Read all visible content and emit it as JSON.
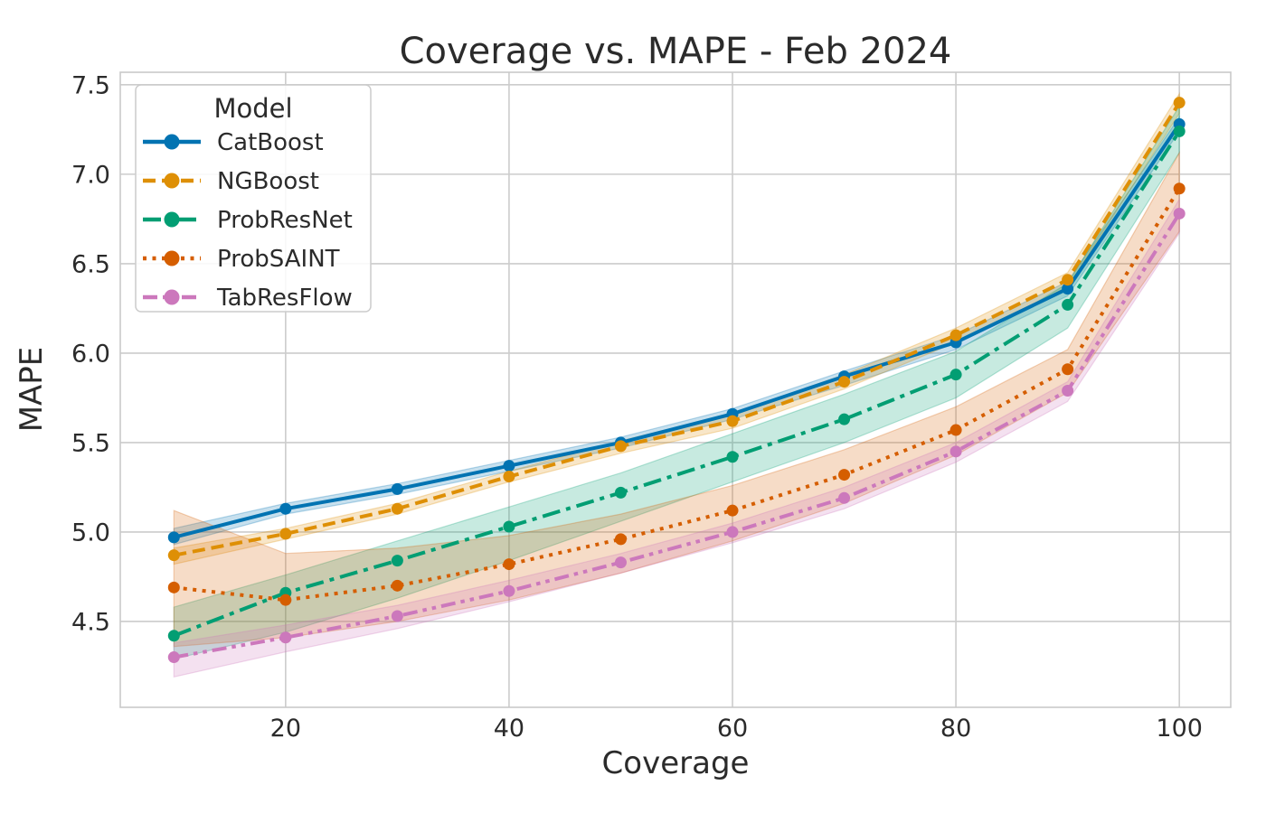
{
  "chart_data": {
    "type": "line",
    "title": "Coverage vs. MAPE - Feb 2024",
    "xlabel": "Coverage",
    "ylabel": "MAPE",
    "legend_title": "Model",
    "legend_position": "upper left",
    "grid": true,
    "x": [
      10,
      20,
      30,
      40,
      50,
      60,
      70,
      80,
      90,
      100
    ],
    "xticks": [
      20,
      40,
      60,
      80,
      100
    ],
    "yticks": [
      4.5,
      5.0,
      5.5,
      6.0,
      6.5,
      7.0,
      7.5
    ],
    "xlim": [
      5.2,
      104.6
    ],
    "ylim": [
      4.02,
      7.57
    ],
    "series": [
      {
        "name": "CatBoost",
        "color": "#0173b2",
        "dash": "solid",
        "values": [
          4.97,
          5.13,
          5.24,
          5.37,
          5.5,
          5.66,
          5.87,
          6.06,
          6.36,
          7.28
        ],
        "band_upper": [
          5.02,
          5.16,
          5.27,
          5.4,
          5.53,
          5.69,
          5.9,
          6.1,
          6.4,
          7.32
        ],
        "band_lower": [
          4.93,
          5.1,
          5.21,
          5.34,
          5.47,
          5.63,
          5.82,
          6.02,
          6.32,
          7.24
        ]
      },
      {
        "name": "NGBoost",
        "color": "#de8f05",
        "dash": "dashed",
        "values": [
          4.87,
          4.99,
          5.13,
          5.31,
          5.48,
          5.62,
          5.84,
          6.1,
          6.41,
          7.4
        ],
        "band_upper": [
          4.91,
          5.02,
          5.16,
          5.34,
          5.51,
          5.66,
          5.88,
          6.14,
          6.45,
          7.45
        ],
        "band_lower": [
          4.82,
          4.96,
          5.1,
          5.28,
          5.44,
          5.58,
          5.8,
          6.06,
          6.37,
          7.34
        ]
      },
      {
        "name": "ProbResNet",
        "color": "#029e73",
        "dash": "dashdot",
        "values": [
          4.42,
          4.66,
          4.84,
          5.03,
          5.22,
          5.42,
          5.63,
          5.88,
          6.27,
          7.24
        ],
        "band_upper": [
          4.58,
          4.76,
          4.95,
          5.14,
          5.33,
          5.55,
          5.77,
          6.01,
          6.39,
          7.38
        ],
        "band_lower": [
          4.29,
          4.44,
          4.63,
          4.84,
          5.06,
          5.28,
          5.5,
          5.75,
          6.14,
          7.12
        ]
      },
      {
        "name": "ProbSAINT",
        "color": "#d55e00",
        "dash": "dotted",
        "values": [
          4.69,
          4.62,
          4.7,
          4.82,
          4.96,
          5.12,
          5.32,
          5.57,
          5.91,
          6.92
        ],
        "band_upper": [
          5.12,
          4.88,
          4.91,
          4.98,
          5.1,
          5.26,
          5.46,
          5.7,
          6.02,
          7.12
        ],
        "band_lower": [
          4.36,
          4.41,
          4.5,
          4.62,
          4.77,
          4.95,
          5.16,
          5.43,
          5.78,
          6.68
        ]
      },
      {
        "name": "TabResFlow",
        "color": "#cc78bc",
        "dash": "dashdotdot",
        "values": [
          4.3,
          4.41,
          4.53,
          4.67,
          4.83,
          5.0,
          5.19,
          5.45,
          5.79,
          6.78
        ],
        "band_upper": [
          4.38,
          4.48,
          4.59,
          4.73,
          4.88,
          5.05,
          5.25,
          5.5,
          5.84,
          6.86
        ],
        "band_lower": [
          4.19,
          4.33,
          4.46,
          4.61,
          4.77,
          4.94,
          5.13,
          5.39,
          5.73,
          6.67
        ]
      }
    ]
  }
}
